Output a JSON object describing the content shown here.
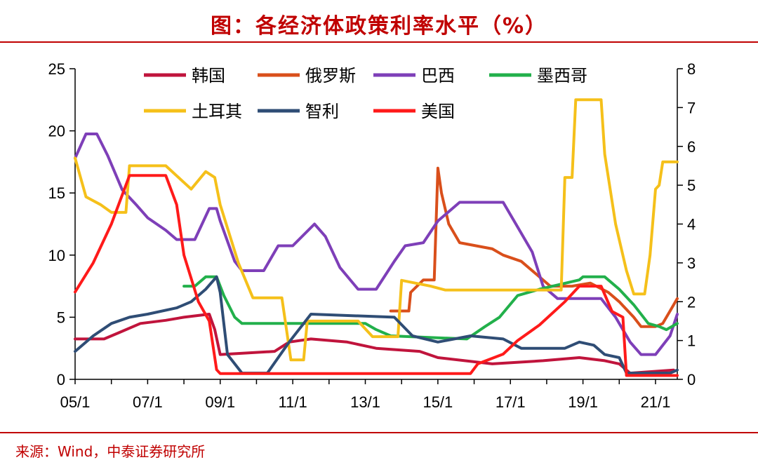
{
  "title": "图：各经济体政策利率水平（%）",
  "source": "来源：Wind，中泰证券研究所",
  "colors": {
    "rule": "#c00000",
    "韩国": "#c0143c",
    "俄罗斯": "#d94f1b",
    "巴西": "#7e3fb8",
    "墨西哥": "#22b04b",
    "土耳其": "#f5c01a",
    "智利": "#2f4d75",
    "美国": "#ff1a1a"
  },
  "chart_data": {
    "type": "line",
    "title": "各经济体政策利率水平（%）",
    "x_ticks": [
      "05/1",
      "07/1",
      "09/1",
      "11/1",
      "13/1",
      "15/1",
      "17/1",
      "19/1",
      "21/1"
    ],
    "x_range": [
      2005.0,
      2021.6
    ],
    "y_left": {
      "ylim": [
        0,
        25
      ],
      "ticks": [
        "0",
        "5",
        "10",
        "15",
        "20",
        "25"
      ]
    },
    "y_right": {
      "ylim": [
        0,
        8
      ],
      "ticks": [
        "0",
        "1",
        "2",
        "3",
        "4",
        "5",
        "6",
        "7",
        "8"
      ]
    },
    "legend_order": [
      "韩国",
      "俄罗斯",
      "巴西",
      "墨西哥",
      "土耳其",
      "智利",
      "美国"
    ],
    "series": [
      {
        "name": "韩国",
        "axis": "left",
        "points": [
          [
            2005.0,
            3.25
          ],
          [
            2005.8,
            3.25
          ],
          [
            2006.2,
            3.75
          ],
          [
            2006.8,
            4.5
          ],
          [
            2007.5,
            4.75
          ],
          [
            2008.0,
            5.0
          ],
          [
            2008.7,
            5.25
          ],
          [
            2008.85,
            4.0
          ],
          [
            2009.0,
            2.0
          ],
          [
            2010.5,
            2.25
          ],
          [
            2010.9,
            3.0
          ],
          [
            2011.5,
            3.25
          ],
          [
            2012.5,
            3.0
          ],
          [
            2013.3,
            2.5
          ],
          [
            2014.5,
            2.25
          ],
          [
            2015.0,
            1.75
          ],
          [
            2016.5,
            1.25
          ],
          [
            2017.9,
            1.5
          ],
          [
            2018.9,
            1.75
          ],
          [
            2019.6,
            1.5
          ],
          [
            2020.0,
            1.25
          ],
          [
            2020.3,
            0.5
          ],
          [
            2021.5,
            0.75
          ]
        ]
      },
      {
        "name": "俄罗斯",
        "axis": "left",
        "points": [
          [
            2013.7,
            5.5
          ],
          [
            2014.2,
            5.5
          ],
          [
            2014.25,
            7.0
          ],
          [
            2014.6,
            8.0
          ],
          [
            2014.9,
            8.0
          ],
          [
            2015.0,
            17.0
          ],
          [
            2015.1,
            15.0
          ],
          [
            2015.3,
            12.5
          ],
          [
            2015.6,
            11.0
          ],
          [
            2016.5,
            10.5
          ],
          [
            2016.8,
            10.0
          ],
          [
            2017.3,
            9.5
          ],
          [
            2017.7,
            8.5
          ],
          [
            2018.1,
            7.5
          ],
          [
            2018.7,
            7.5
          ],
          [
            2019.2,
            7.75
          ],
          [
            2019.7,
            7.0
          ],
          [
            2020.0,
            6.25
          ],
          [
            2020.4,
            5.0
          ],
          [
            2020.6,
            4.25
          ],
          [
            2021.0,
            4.25
          ],
          [
            2021.2,
            4.5
          ],
          [
            2021.4,
            5.5
          ],
          [
            2021.6,
            6.5
          ]
        ]
      },
      {
        "name": "巴西",
        "axis": "left",
        "points": [
          [
            2005.0,
            17.8
          ],
          [
            2005.3,
            19.75
          ],
          [
            2005.6,
            19.75
          ],
          [
            2005.9,
            18.0
          ],
          [
            2006.3,
            15.25
          ],
          [
            2006.7,
            14.0
          ],
          [
            2007.0,
            13.0
          ],
          [
            2007.5,
            12.0
          ],
          [
            2007.8,
            11.25
          ],
          [
            2008.3,
            11.25
          ],
          [
            2008.7,
            13.75
          ],
          [
            2008.9,
            13.75
          ],
          [
            2009.0,
            12.75
          ],
          [
            2009.4,
            9.5
          ],
          [
            2009.6,
            8.75
          ],
          [
            2010.2,
            8.75
          ],
          [
            2010.6,
            10.75
          ],
          [
            2011.0,
            10.75
          ],
          [
            2011.6,
            12.5
          ],
          [
            2011.9,
            11.5
          ],
          [
            2012.3,
            9.0
          ],
          [
            2012.8,
            7.25
          ],
          [
            2013.3,
            7.25
          ],
          [
            2013.8,
            9.5
          ],
          [
            2014.1,
            10.75
          ],
          [
            2014.6,
            11.0
          ],
          [
            2015.0,
            12.75
          ],
          [
            2015.6,
            14.25
          ],
          [
            2016.8,
            14.25
          ],
          [
            2017.2,
            12.25
          ],
          [
            2017.6,
            10.25
          ],
          [
            2017.9,
            7.5
          ],
          [
            2018.3,
            6.5
          ],
          [
            2019.5,
            6.5
          ],
          [
            2019.9,
            5.0
          ],
          [
            2020.3,
            3.0
          ],
          [
            2020.6,
            2.0
          ],
          [
            2021.0,
            2.0
          ],
          [
            2021.4,
            3.5
          ],
          [
            2021.6,
            5.25
          ]
        ]
      },
      {
        "name": "墨西哥",
        "axis": "left",
        "points": [
          [
            2008.0,
            7.5
          ],
          [
            2008.3,
            7.5
          ],
          [
            2008.6,
            8.25
          ],
          [
            2008.9,
            8.25
          ],
          [
            2009.1,
            6.75
          ],
          [
            2009.4,
            5.0
          ],
          [
            2009.6,
            4.5
          ],
          [
            2013.0,
            4.5
          ],
          [
            2013.3,
            4.0
          ],
          [
            2013.7,
            3.5
          ],
          [
            2015.8,
            3.25
          ],
          [
            2016.3,
            4.25
          ],
          [
            2016.7,
            5.0
          ],
          [
            2017.2,
            6.75
          ],
          [
            2017.8,
            7.25
          ],
          [
            2018.9,
            8.0
          ],
          [
            2019.0,
            8.25
          ],
          [
            2019.6,
            8.25
          ],
          [
            2020.0,
            7.25
          ],
          [
            2020.4,
            6.0
          ],
          [
            2020.8,
            4.5
          ],
          [
            2021.1,
            4.25
          ],
          [
            2021.3,
            4.0
          ],
          [
            2021.6,
            4.5
          ]
        ]
      },
      {
        "name": "土耳其",
        "axis": "right",
        "points": [
          [
            2005.0,
            5.7
          ],
          [
            2005.3,
            4.7
          ],
          [
            2005.7,
            4.5
          ],
          [
            2006.0,
            4.3
          ],
          [
            2006.4,
            4.3
          ],
          [
            2006.5,
            5.5
          ],
          [
            2007.5,
            5.5
          ],
          [
            2008.2,
            4.9
          ],
          [
            2008.6,
            5.35
          ],
          [
            2008.85,
            5.2
          ],
          [
            2009.0,
            4.5
          ],
          [
            2009.5,
            3.0
          ],
          [
            2009.9,
            2.1
          ],
          [
            2010.7,
            2.1
          ],
          [
            2010.95,
            0.5
          ],
          [
            2011.3,
            0.5
          ],
          [
            2011.4,
            1.5
          ],
          [
            2012.0,
            1.5
          ],
          [
            2012.8,
            1.5
          ],
          [
            2013.2,
            1.1
          ],
          [
            2013.9,
            1.1
          ],
          [
            2014.0,
            2.55
          ],
          [
            2014.8,
            2.4
          ],
          [
            2015.2,
            2.3
          ],
          [
            2018.4,
            2.3
          ],
          [
            2018.5,
            5.2
          ],
          [
            2018.7,
            5.2
          ],
          [
            2018.8,
            7.2
          ],
          [
            2019.5,
            7.2
          ],
          [
            2019.6,
            5.8
          ],
          [
            2019.9,
            4.0
          ],
          [
            2020.2,
            2.8
          ],
          [
            2020.4,
            2.2
          ],
          [
            2020.7,
            2.2
          ],
          [
            2020.85,
            3.2
          ],
          [
            2021.0,
            4.9
          ],
          [
            2021.1,
            5.0
          ],
          [
            2021.2,
            5.6
          ],
          [
            2021.6,
            5.6
          ]
        ]
      },
      {
        "name": "智利",
        "axis": "left",
        "points": [
          [
            2005.0,
            2.25
          ],
          [
            2005.5,
            3.5
          ],
          [
            2006.0,
            4.5
          ],
          [
            2006.5,
            5.0
          ],
          [
            2007.0,
            5.25
          ],
          [
            2007.8,
            5.75
          ],
          [
            2008.2,
            6.25
          ],
          [
            2008.6,
            7.25
          ],
          [
            2008.9,
            8.25
          ],
          [
            2009.0,
            7.0
          ],
          [
            2009.2,
            2.0
          ],
          [
            2009.6,
            0.5
          ],
          [
            2010.3,
            0.5
          ],
          [
            2010.9,
            3.0
          ],
          [
            2011.5,
            5.25
          ],
          [
            2013.8,
            5.0
          ],
          [
            2014.3,
            3.5
          ],
          [
            2015.0,
            3.0
          ],
          [
            2015.9,
            3.5
          ],
          [
            2016.8,
            3.25
          ],
          [
            2017.3,
            2.5
          ],
          [
            2018.5,
            2.5
          ],
          [
            2018.9,
            3.0
          ],
          [
            2019.3,
            2.75
          ],
          [
            2019.6,
            2.0
          ],
          [
            2020.0,
            1.75
          ],
          [
            2020.2,
            0.5
          ],
          [
            2021.4,
            0.5
          ],
          [
            2021.6,
            0.75
          ]
        ]
      },
      {
        "name": "美国",
        "axis": "right",
        "points": [
          [
            2005.0,
            2.25
          ],
          [
            2005.5,
            3.0
          ],
          [
            2006.0,
            4.0
          ],
          [
            2006.5,
            5.25
          ],
          [
            2007.5,
            5.25
          ],
          [
            2007.8,
            4.5
          ],
          [
            2008.0,
            3.2
          ],
          [
            2008.4,
            2.0
          ],
          [
            2008.7,
            1.5
          ],
          [
            2008.9,
            0.25
          ],
          [
            2009.0,
            0.15
          ],
          [
            2015.9,
            0.15
          ],
          [
            2016.1,
            0.4
          ],
          [
            2016.8,
            0.65
          ],
          [
            2017.2,
            1.0
          ],
          [
            2017.8,
            1.4
          ],
          [
            2018.5,
            2.0
          ],
          [
            2018.9,
            2.4
          ],
          [
            2019.5,
            2.4
          ],
          [
            2019.8,
            1.75
          ],
          [
            2020.1,
            1.6
          ],
          [
            2020.2,
            0.1
          ],
          [
            2021.6,
            0.1
          ]
        ]
      }
    ]
  }
}
